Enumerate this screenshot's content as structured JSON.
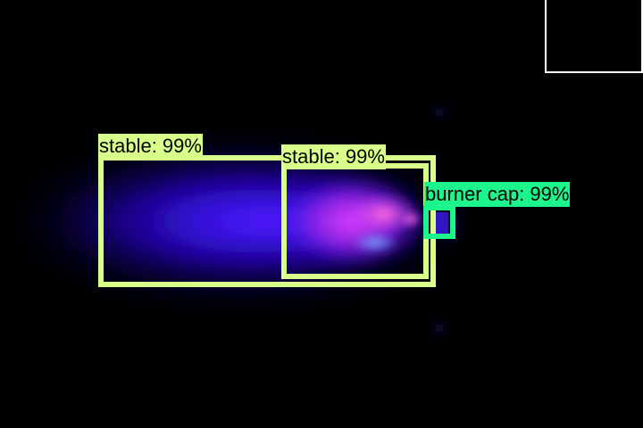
{
  "colors": {
    "background": "#000003",
    "stable_box": "#d7ff8a",
    "burner_cap_box": "#1cf58c",
    "label_text": "#000000",
    "inset_border": "#ffffff"
  },
  "detections": [
    {
      "label": "stable: 99%"
    },
    {
      "label": "stable: 99%"
    },
    {
      "label": "burner cap: 99%"
    }
  ]
}
